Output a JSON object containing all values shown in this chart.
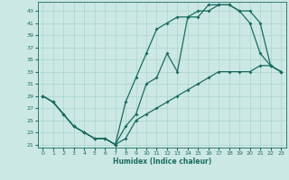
{
  "xlabel": "Humidex (Indice chaleur)",
  "xlim": [
    -0.5,
    23.5
  ],
  "ylim": [
    20.5,
    44.5
  ],
  "xticks": [
    0,
    1,
    2,
    3,
    4,
    5,
    6,
    7,
    8,
    9,
    10,
    11,
    12,
    13,
    14,
    15,
    16,
    17,
    18,
    19,
    20,
    21,
    22,
    23
  ],
  "yticks": [
    21,
    23,
    25,
    27,
    29,
    31,
    33,
    35,
    37,
    39,
    41,
    43
  ],
  "bg_color": "#cce8e4",
  "line_color": "#1a6b62",
  "grid_color": "#aad4ce",
  "line1_x": [
    0,
    1,
    2,
    3,
    4,
    5,
    6,
    7,
    8,
    9,
    10,
    11,
    12,
    13,
    14,
    15,
    16,
    17,
    18,
    19,
    20,
    21,
    22,
    23
  ],
  "line1_y": [
    29,
    28,
    26,
    24,
    23,
    22,
    22,
    21,
    28,
    32,
    36,
    40,
    41,
    42,
    42,
    43,
    43,
    44,
    44,
    43,
    43,
    41,
    34,
    33
  ],
  "line2_x": [
    0,
    1,
    2,
    3,
    4,
    5,
    6,
    7,
    8,
    9,
    10,
    11,
    12,
    13,
    14,
    15,
    16,
    17,
    18,
    19,
    20,
    21,
    22,
    23
  ],
  "line2_y": [
    29,
    28,
    26,
    24,
    23,
    22,
    22,
    21,
    24,
    26,
    31,
    32,
    36,
    33,
    42,
    42,
    44,
    44,
    44,
    43,
    41,
    36,
    34,
    33
  ],
  "line3_x": [
    0,
    1,
    2,
    3,
    4,
    5,
    6,
    7,
    8,
    9,
    10,
    11,
    12,
    13,
    14,
    15,
    16,
    17,
    18,
    19,
    20,
    21,
    22,
    23
  ],
  "line3_y": [
    29,
    28,
    26,
    24,
    23,
    22,
    22,
    21,
    22,
    25,
    26,
    27,
    28,
    29,
    30,
    31,
    32,
    33,
    33,
    33,
    33,
    34,
    34,
    33
  ]
}
